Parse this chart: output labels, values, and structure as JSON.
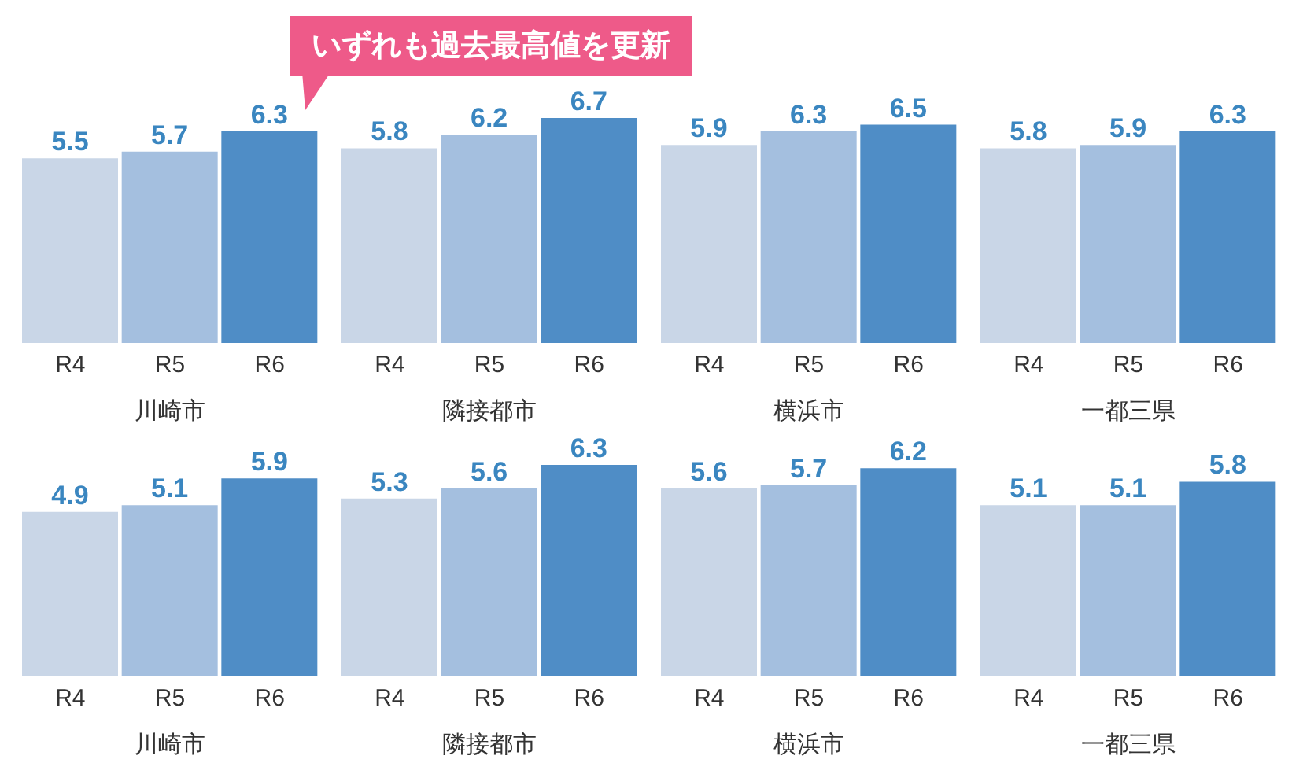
{
  "chart_data": [
    {
      "type": "bar",
      "categories": [
        "R4",
        "R5",
        "R6"
      ],
      "xlabel": "川崎市",
      "values": [
        5.5,
        5.7,
        6.3
      ],
      "colors": [
        "#c9d6e7",
        "#a4bfdf",
        "#4f8dc6"
      ],
      "data_labels": true,
      "tick_labels": "x",
      "annotations": [
        "いずれも過去最高値を更新"
      ]
    },
    {
      "type": "bar",
      "categories": [
        "R4",
        "R5",
        "R6"
      ],
      "xlabel": "隣接都市",
      "values": [
        5.8,
        6.2,
        6.7
      ],
      "colors": [
        "#c9d6e7",
        "#a4bfdf",
        "#4f8dc6"
      ],
      "data_labels": true,
      "tick_labels": "x"
    },
    {
      "type": "bar",
      "categories": [
        "R4",
        "R5",
        "R6"
      ],
      "xlabel": "横浜市",
      "values": [
        5.9,
        6.3,
        6.5
      ],
      "colors": [
        "#c9d6e7",
        "#a4bfdf",
        "#4f8dc6"
      ],
      "data_labels": true,
      "tick_labels": "x"
    },
    {
      "type": "bar",
      "categories": [
        "R4",
        "R5",
        "R6"
      ],
      "xlabel": "一都三県",
      "values": [
        5.8,
        5.9,
        6.3
      ],
      "colors": [
        "#c9d6e7",
        "#a4bfdf",
        "#4f8dc6"
      ],
      "data_labels": true,
      "tick_labels": "x"
    },
    {
      "type": "bar",
      "categories": [
        "R4",
        "R5",
        "R6"
      ],
      "xlabel": "川崎市",
      "values": [
        4.9,
        5.1,
        5.9
      ],
      "colors": [
        "#c9d6e7",
        "#a4bfdf",
        "#4f8dc6"
      ],
      "data_labels": true,
      "tick_labels": "x"
    },
    {
      "type": "bar",
      "categories": [
        "R4",
        "R5",
        "R6"
      ],
      "xlabel": "隣接都市",
      "values": [
        5.3,
        5.6,
        6.3
      ],
      "colors": [
        "#c9d6e7",
        "#a4bfdf",
        "#4f8dc6"
      ],
      "data_labels": true,
      "tick_labels": "x"
    },
    {
      "type": "bar",
      "categories": [
        "R4",
        "R5",
        "R6"
      ],
      "xlabel": "横浜市",
      "values": [
        5.6,
        5.7,
        6.2
      ],
      "colors": [
        "#c9d6e7",
        "#a4bfdf",
        "#4f8dc6"
      ],
      "data_labels": true,
      "tick_labels": "x"
    },
    {
      "type": "bar",
      "categories": [
        "R4",
        "R5",
        "R6"
      ],
      "xlabel": "一都三県",
      "values": [
        5.1,
        5.1,
        5.8
      ],
      "colors": [
        "#c9d6e7",
        "#a4bfdf",
        "#4f8dc6"
      ],
      "data_labels": true,
      "tick_labels": "x"
    }
  ]
}
